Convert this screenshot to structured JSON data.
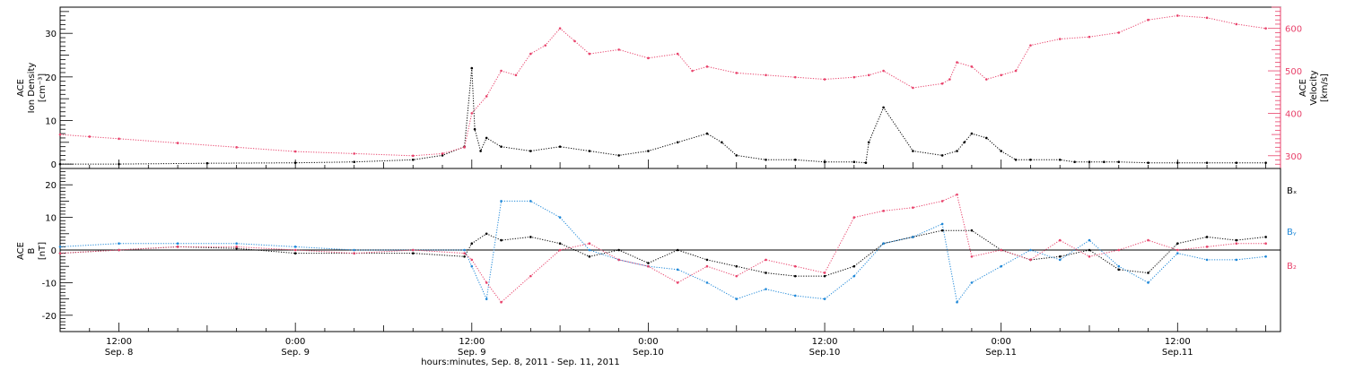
{
  "chart_data": [
    {
      "type": "scatter",
      "panel": "top",
      "ylabel_left": [
        "ACE",
        "Ion Density",
        "[cm⁻³]"
      ],
      "ylabel_right": [
        "ACE",
        "Velocity",
        "[km/s]"
      ],
      "ylim_left": [
        -1,
        36
      ],
      "ylim_right": [
        270,
        650
      ],
      "yticks_left": [
        "0",
        "10",
        "20",
        "30"
      ],
      "yticks_right": [
        "300",
        "400",
        "500",
        "600"
      ],
      "xlim_hours": [
        -16,
        67
      ],
      "grid": false,
      "series": [
        {
          "axis": "left",
          "color": "#000000",
          "x": [
            -16,
            -12,
            -6,
            0,
            4,
            8,
            10,
            11.5,
            12,
            12.2,
            12.6,
            13,
            14,
            16,
            18,
            20,
            22,
            24,
            26,
            28,
            29,
            30,
            32,
            34,
            36,
            38,
            38.8,
            39,
            40,
            42,
            44,
            45,
            45.5,
            46,
            47,
            48,
            49,
            50,
            52,
            53,
            54,
            55,
            56,
            58,
            60,
            62,
            64,
            66
          ],
          "y": [
            0,
            0,
            0.2,
            0.3,
            0.5,
            1,
            2,
            4,
            22,
            8,
            3,
            6,
            4,
            3,
            4,
            3,
            2,
            3,
            5,
            7,
            5,
            2,
            1,
            1,
            0.5,
            0.5,
            0.3,
            5,
            13,
            3,
            2,
            3,
            5,
            7,
            6,
            3,
            1,
            1,
            1,
            0.5,
            0.5,
            0.5,
            0.5,
            0.3,
            0.3,
            0.3,
            0.3,
            0.3
          ]
        },
        {
          "axis": "right",
          "color": "#e8426b",
          "x": [
            -16,
            -14,
            -12,
            -8,
            -4,
            0,
            4,
            8,
            10,
            11.5,
            12,
            13,
            14,
            15,
            16,
            17,
            18,
            19,
            20,
            22,
            24,
            26,
            27,
            28,
            30,
            32,
            34,
            36,
            38,
            39,
            40,
            42,
            44,
            44.5,
            45,
            46,
            47,
            48,
            49,
            50,
            52,
            54,
            56,
            58,
            60,
            62,
            64,
            66
          ],
          "y": [
            350,
            345,
            340,
            330,
            320,
            310,
            305,
            300,
            305,
            320,
            400,
            440,
            500,
            490,
            540,
            560,
            600,
            570,
            540,
            550,
            530,
            540,
            500,
            510,
            495,
            490,
            485,
            480,
            485,
            490,
            500,
            460,
            470,
            480,
            520,
            510,
            480,
            490,
            500,
            560,
            575,
            580,
            590,
            620,
            630,
            625,
            610,
            600
          ]
        }
      ]
    },
    {
      "type": "scatter",
      "panel": "bottom",
      "ylabel_left": [
        "ACE",
        "B",
        "[nT]"
      ],
      "ylim": [
        -25,
        25
      ],
      "yticks": [
        "20",
        "10",
        "0",
        "-10",
        "-20"
      ],
      "xlim_hours": [
        -16,
        67
      ],
      "zero_line": true,
      "legend": [
        "Bₓ",
        "Bᵧ",
        "B₂"
      ],
      "legend_position": "right",
      "series": [
        {
          "name": "Bₓ",
          "color": "#000000",
          "x": [
            -16,
            -12,
            -8,
            -4,
            0,
            4,
            8,
            11.5,
            12,
            13,
            14,
            16,
            18,
            20,
            22,
            24,
            26,
            28,
            30,
            32,
            34,
            36,
            38,
            40,
            42,
            44,
            46,
            48,
            50,
            52,
            54,
            56,
            58,
            60,
            62,
            64,
            66
          ],
          "y": [
            -1,
            0,
            1,
            0.5,
            -1,
            -1,
            -1,
            -2,
            2,
            5,
            3,
            4,
            2,
            -2,
            0,
            -4,
            0,
            -3,
            -5,
            -7,
            -8,
            -8,
            -5,
            2,
            4,
            6,
            6,
            0,
            -3,
            -2,
            0,
            -6,
            -7,
            2,
            4,
            3,
            4
          ]
        },
        {
          "name": "Bᵧ",
          "color": "#1f88d8",
          "x": [
            -16,
            -12,
            -8,
            -4,
            0,
            4,
            8,
            11.5,
            12,
            13,
            14,
            16,
            18,
            20,
            22,
            24,
            26,
            28,
            30,
            32,
            34,
            36,
            38,
            40,
            42,
            44,
            45,
            46,
            48,
            50,
            52,
            54,
            56,
            58,
            60,
            62,
            64,
            66
          ],
          "y": [
            1,
            2,
            2,
            2,
            1,
            0,
            0,
            0,
            -5,
            -15,
            15,
            15,
            10,
            0,
            -3,
            -5,
            -6,
            -10,
            -15,
            -12,
            -14,
            -15,
            -8,
            2,
            4,
            8,
            -16,
            -10,
            -5,
            0,
            -3,
            3,
            -5,
            -10,
            -1,
            -3,
            -3,
            -2
          ]
        },
        {
          "name": "B₂",
          "color": "#e8426b",
          "x": [
            -16,
            -12,
            -8,
            -4,
            0,
            4,
            8,
            11.5,
            12,
            13,
            14,
            16,
            18,
            20,
            22,
            24,
            26,
            28,
            30,
            32,
            34,
            36,
            38,
            40,
            42,
            44,
            45,
            46,
            48,
            50,
            52,
            54,
            56,
            58,
            60,
            62,
            64,
            66
          ],
          "y": [
            -1,
            0,
            1,
            1,
            0,
            -1,
            0,
            -1,
            -3,
            -10,
            -16,
            -8,
            0,
            2,
            -3,
            -5,
            -10,
            -5,
            -8,
            -3,
            -5,
            -7,
            10,
            12,
            13,
            15,
            17,
            -2,
            0,
            -3,
            3,
            -2,
            0,
            3,
            0,
            1,
            2,
            2
          ]
        }
      ]
    }
  ],
  "xaxis": {
    "ticks": [
      {
        "h": -12,
        "time": "12:00",
        "date": "Sep. 8"
      },
      {
        "h": 0,
        "time": "0:00",
        "date": "Sep. 9"
      },
      {
        "h": 12,
        "time": "12:00",
        "date": "Sep. 9"
      },
      {
        "h": 24,
        "time": "0:00",
        "date": "Sep.10"
      },
      {
        "h": 36,
        "time": "12:00",
        "date": "Sep.10"
      },
      {
        "h": 48,
        "time": "0:00",
        "date": "Sep.11"
      },
      {
        "h": 60,
        "time": "12:00",
        "date": "Sep.11"
      }
    ],
    "label": "hours:minutes, Sep.  8, 2011 - Sep. 11, 2011"
  },
  "colors": {
    "density": "#000000",
    "velocity": "#e8426b",
    "bx": "#000000",
    "by": "#1f88d8",
    "bz": "#e8426b",
    "right_axis": "#e8426b"
  }
}
